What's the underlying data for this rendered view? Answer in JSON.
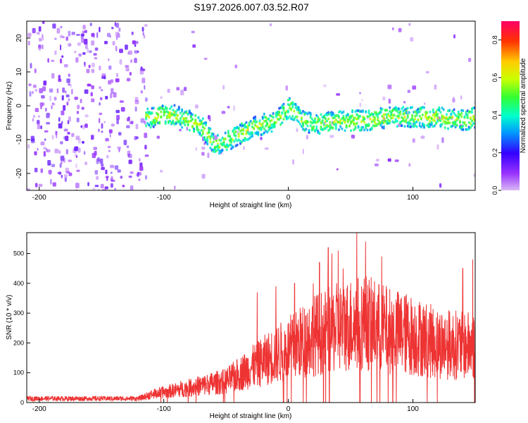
{
  "title": "S197.2026.007.03.52.R07",
  "chart_data": [
    {
      "type": "heatmap",
      "name": "spectrogram",
      "xlabel": "Height of straight line (km)",
      "ylabel": "Frequency (Hz)",
      "xlim": [
        -210,
        150
      ],
      "ylim": [
        -25,
        25
      ],
      "xticks": [
        "-200",
        "-100",
        "0",
        "100"
      ],
      "yticks": [
        "20",
        "10",
        "0",
        "-10",
        "-20"
      ],
      "colorbar": {
        "label": "Normalized spectral amplitude",
        "range": [
          0.0,
          0.9
        ],
        "ticks": [
          "0.0",
          "0.2",
          "0.4",
          "0.6",
          "0.8"
        ]
      },
      "ridge": {
        "description": "dominant frequency trace vs height",
        "x": [
          -110,
          -100,
          -90,
          -80,
          -70,
          -60,
          -50,
          -40,
          -30,
          -20,
          -10,
          0,
          10,
          20,
          40,
          60,
          80,
          100,
          120,
          140,
          150
        ],
        "y": [
          -3,
          -2,
          -2.5,
          -4,
          -6,
          -11,
          -10,
          -8,
          -6,
          -5,
          -4,
          0,
          -4,
          -5,
          -4,
          -4,
          -3,
          -3,
          -3,
          -4,
          -3
        ]
      }
    },
    {
      "type": "line",
      "name": "snr",
      "xlabel": "Height of straight line (km)",
      "ylabel": "SNR (10 * v/v)",
      "xlim": [
        -210,
        150
      ],
      "ylim": [
        0,
        570
      ],
      "xticks": [
        "-200",
        "-100",
        "0",
        "100"
      ],
      "yticks": [
        "0",
        "100",
        "200",
        "300",
        "400",
        "500"
      ],
      "color": "#ee3333",
      "envelope": {
        "description": "approximate typical SNR level vs height",
        "x": [
          -210,
          -120,
          -110,
          -80,
          -50,
          -30,
          -10,
          0,
          20,
          40,
          60,
          80,
          100,
          120,
          150
        ],
        "y": [
          15,
          15,
          30,
          55,
          80,
          130,
          180,
          200,
          250,
          280,
          300,
          270,
          250,
          220,
          210
        ]
      },
      "peaks": {
        "x": [
          -25,
          -10,
          5,
          20,
          25,
          32,
          35,
          40,
          44,
          55,
          62,
          75,
          140,
          148
        ],
        "y": [
          370,
          390,
          400,
          400,
          470,
          520,
          500,
          510,
          450,
          570,
          540,
          490,
          450,
          480
        ]
      }
    }
  ]
}
